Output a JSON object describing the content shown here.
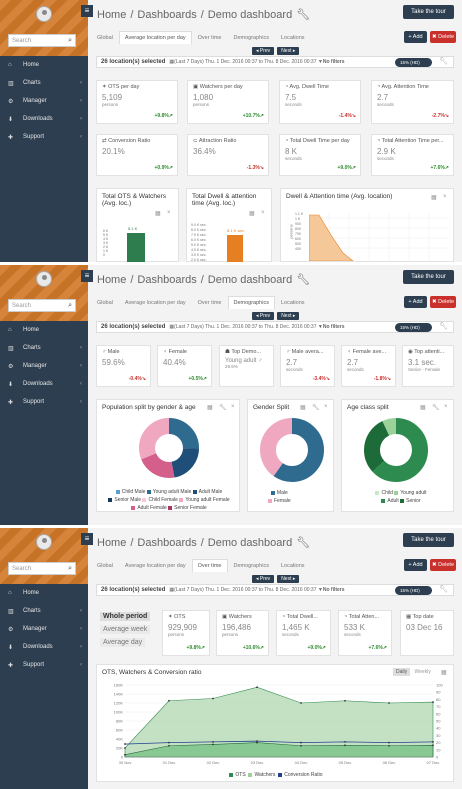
{
  "sidebar": {
    "search_placeholder": "Search",
    "items": [
      {
        "label": "Home"
      },
      {
        "label": "Charts"
      },
      {
        "label": "Manager"
      },
      {
        "label": "Downloads"
      },
      {
        "label": "Support"
      }
    ]
  },
  "breadcrumb": [
    "Home",
    "/",
    "Dashboards",
    "/",
    "Demo dashboard"
  ],
  "tour_label": "Take the tour",
  "tabs": [
    "Global",
    "Average location per day",
    "Over time",
    "Demographics",
    "Locations"
  ],
  "add_label": "+ Add",
  "delete_label": "✖ Delete",
  "prev_label": "◂ Prev",
  "next_label": "Next ▸",
  "filter": {
    "locations": "26 location(s) selected",
    "range": "(Last 7 Days) Thu. 1 Dec. 2016 00:37 to Thu. 8 Dec. 2016 00:37",
    "nofilters": "No filters",
    "toggle": "15% (HD)"
  },
  "panel1": {
    "cards": [
      {
        "title": "OTS per day",
        "value": "5,109",
        "unit": "persons",
        "delta": "+9.8%↗",
        "dir": "g"
      },
      {
        "title": "Watchers per day",
        "value": "1,080",
        "unit": "persons",
        "delta": "+10.7%↗",
        "dir": "g"
      },
      {
        "title": "Avg. Dwell Time",
        "value": "7.5",
        "unit": "seconds",
        "delta": "-1.4%↘",
        "dir": "r"
      },
      {
        "title": "Avg. Attention Time",
        "value": "2.7",
        "unit": "seconds",
        "delta": "-2.7%↘",
        "dir": "r"
      },
      {
        "title": "Conversion Ratio",
        "value": "20.1%",
        "unit": "",
        "delta": "+0.9%↗",
        "dir": "g"
      },
      {
        "title": "Attraction Ratio",
        "value": "36.4%",
        "unit": "",
        "delta": "-1.3%↘",
        "dir": "r"
      },
      {
        "title": "Total Dwell Time per day",
        "value": "8 K",
        "unit": "seconds",
        "delta": "+9.0%↗",
        "dir": "g"
      },
      {
        "title": "Total Attention Time per...",
        "value": "2.9 K",
        "unit": "seconds",
        "delta": "+7.6%↗",
        "dir": "g"
      }
    ],
    "charts": [
      {
        "title": "Total OTS & Watchers (Avg. loc.)",
        "label": "5.1 K"
      },
      {
        "title": "Total Dwell & attention time (Avg. loc.)",
        "label": "8.1 K sec."
      },
      {
        "title": "Dwell & Attention time (Avg. location)",
        "ylabel": "persons"
      }
    ]
  },
  "panel2": {
    "cards": [
      {
        "title": "Male",
        "value": "59.6%",
        "unit": "",
        "delta": "-0.4%↘",
        "dir": "r"
      },
      {
        "title": "Female",
        "value": "40.4%",
        "unit": "",
        "delta": "+0.5%↗",
        "dir": "g"
      },
      {
        "title": "Top Demo...",
        "value": "Young adult ♂",
        "unit": "29.5%",
        "delta": "",
        "dir": "g"
      },
      {
        "title": "Male avera...",
        "value": "2.7",
        "unit": "seconds",
        "delta": "-3.4%↘",
        "dir": "r"
      },
      {
        "title": "Female ave...",
        "value": "2.7",
        "unit": "seconds",
        "delta": "-1.8%↘",
        "dir": "r"
      },
      {
        "title": "Top attenti...",
        "value": "3.1 sec.",
        "unit": "Senior - Female",
        "delta": "",
        "dir": "g"
      }
    ],
    "charts": [
      {
        "title": "Population split by gender & age",
        "legend": [
          "Child Male",
          "Young adult Male",
          "Adult Male",
          "Senior Male",
          "Child Female",
          "Young adult Female",
          "Adult Female",
          "Senior Female"
        ]
      },
      {
        "title": "Gender Split",
        "legend": [
          "Male",
          "Female"
        ]
      },
      {
        "title": "Age class split",
        "legend": [
          "Child",
          "Young adult",
          "Adult",
          "Senior"
        ]
      }
    ]
  },
  "panel3": {
    "periods": [
      "Whole period",
      "Average week",
      "Average day"
    ],
    "cards": [
      {
        "title": "OTS",
        "value": "929,909",
        "unit": "persons",
        "delta": "+9.8%↗",
        "dir": "g"
      },
      {
        "title": "Watchers",
        "value": "196,486",
        "unit": "persons",
        "delta": "+10.6%↗",
        "dir": "g"
      },
      {
        "title": "Total Dwell...",
        "value": "1,465 K",
        "unit": "seconds",
        "delta": "+9.0%↗",
        "dir": "g"
      },
      {
        "title": "Total Atten...",
        "value": "533 K",
        "unit": "seconds",
        "delta": "+7.6%↗",
        "dir": "g"
      },
      {
        "title": "Top date",
        "value": "03 Dec 16",
        "unit": "",
        "delta": "",
        "dir": "g"
      }
    ],
    "chart_title": "OTS, Watchers & Conversion ratio",
    "chart_toggle": [
      "Daily",
      "Weekly"
    ],
    "chart_legend": [
      "OTS",
      "Watchers",
      "Conversion Ratio"
    ]
  },
  "chart_data": [
    {
      "type": "area",
      "title": "OTS, Watchers & Conversion ratio",
      "categories": [
        "30 Nov",
        "01 Dec",
        "02 Dec",
        "03 Dec",
        "04 Dec",
        "05 Dec",
        "06 Dec",
        "07 Dec"
      ],
      "series": [
        {
          "name": "OTS",
          "values": [
            20000,
            125000,
            130000,
            155000,
            120000,
            125000,
            120000,
            122000
          ]
        },
        {
          "name": "Watchers",
          "values": [
            5000,
            25000,
            28000,
            32000,
            25000,
            26000,
            25000,
            26000
          ]
        },
        {
          "name": "Conversion Ratio",
          "values": [
            18,
            20,
            21,
            22,
            20,
            21,
            20,
            21
          ]
        }
      ],
      "yticks": [
        "0",
        "20K",
        "40K",
        "60K",
        "80K",
        "100K",
        "120K",
        "140K",
        "160K"
      ],
      "y2ticks": [
        "0",
        "10",
        "20",
        "30",
        "40",
        "50",
        "60",
        "70",
        "80",
        "90",
        "100"
      ],
      "ylim": [
        0,
        160000
      ]
    }
  ],
  "colors": {
    "navy": "#2d3e50",
    "orange": "#d27a2a",
    "green": "#2e7d4f",
    "pink": "#e08aa8",
    "blue": "#2e6b8f"
  }
}
